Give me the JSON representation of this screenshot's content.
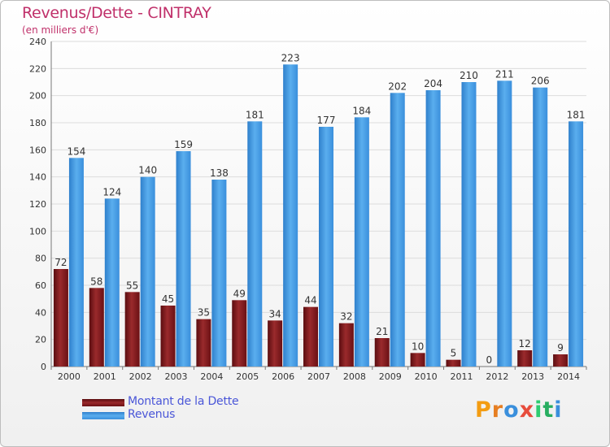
{
  "header": {
    "title": "Revenus/Dette - CINTRAY",
    "subtitle": "(en milliers d'€)"
  },
  "legend": {
    "debt_label": "Montant de la Dette",
    "revenue_label": "Revenus"
  },
  "logo": {
    "text": "Proxiti"
  },
  "colors": {
    "debt": "#7a1518",
    "revenue": "#3a8fdc",
    "title": "#c0306a"
  },
  "chart_data": {
    "type": "bar",
    "categories": [
      "2000",
      "2001",
      "2002",
      "2003",
      "2004",
      "2005",
      "2006",
      "2007",
      "2008",
      "2009",
      "2010",
      "2011",
      "2012",
      "2013",
      "2014"
    ],
    "series": [
      {
        "name": "Montant de la Dette",
        "values": [
          72,
          58,
          55,
          45,
          35,
          49,
          34,
          44,
          32,
          21,
          10,
          5,
          0,
          12,
          9
        ]
      },
      {
        "name": "Revenus",
        "values": [
          154,
          124,
          140,
          159,
          138,
          181,
          223,
          177,
          184,
          202,
          204,
          210,
          211,
          206,
          181
        ]
      }
    ],
    "title": "Revenus/Dette - CINTRAY",
    "subtitle": "(en milliers d'€)",
    "ylim": [
      0,
      240
    ],
    "yticks": [
      0,
      20,
      40,
      60,
      80,
      100,
      120,
      140,
      160,
      180,
      200,
      220,
      240
    ],
    "grid": true,
    "legend_position": "bottom-left"
  }
}
